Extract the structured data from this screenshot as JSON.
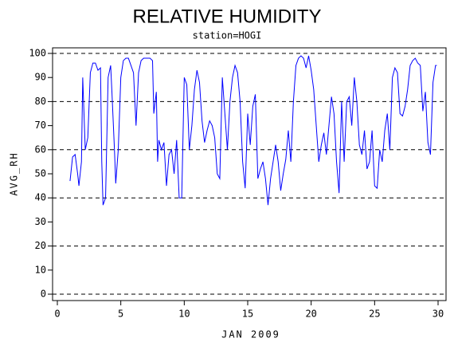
{
  "chart_data": {
    "type": "line",
    "title": "RELATIVE HUMIDITY",
    "subtitle": "station=HOGI",
    "y_label": "AVG_RH",
    "x_label": "JAN 2009",
    "xlim": [
      0,
      30
    ],
    "xticks": [
      0,
      5,
      10,
      15,
      20,
      25,
      30
    ],
    "ylim": [
      0,
      100
    ],
    "yticks": [
      0,
      10,
      20,
      30,
      40,
      50,
      60,
      70,
      80,
      90,
      100
    ],
    "grid_lines": [
      0,
      20,
      40,
      60,
      80,
      100
    ],
    "x": [
      1.0,
      1.2,
      1.4,
      1.6,
      1.7,
      1.9,
      2.0,
      2.2,
      2.4,
      2.6,
      2.8,
      3.0,
      3.2,
      3.4,
      3.5,
      3.6,
      3.8,
      4.0,
      4.2,
      4.3,
      4.5,
      4.6,
      4.8,
      5.0,
      5.2,
      5.4,
      5.6,
      5.8,
      6.0,
      6.2,
      6.4,
      6.6,
      6.8,
      7.0,
      7.3,
      7.5,
      7.6,
      7.8,
      7.9,
      8.0,
      8.2,
      8.4,
      8.6,
      8.8,
      9.0,
      9.2,
      9.4,
      9.6,
      9.8,
      10.0,
      10.2,
      10.4,
      10.6,
      10.8,
      11.0,
      11.2,
      11.4,
      11.6,
      11.8,
      12.0,
      12.2,
      12.4,
      12.6,
      12.8,
      13.0,
      13.2,
      13.4,
      13.6,
      13.8,
      14.0,
      14.2,
      14.4,
      14.6,
      14.8,
      15.0,
      15.2,
      15.4,
      15.6,
      15.8,
      16.0,
      16.2,
      16.4,
      16.6,
      16.8,
      17.0,
      17.2,
      17.4,
      17.6,
      17.8,
      18.0,
      18.2,
      18.4,
      18.6,
      18.8,
      19.0,
      19.2,
      19.4,
      19.6,
      19.8,
      20.0,
      20.2,
      20.4,
      20.6,
      20.8,
      21.0,
      21.2,
      21.4,
      21.6,
      21.8,
      22.0,
      22.2,
      22.4,
      22.6,
      22.8,
      23.0,
      23.2,
      23.4,
      23.6,
      23.8,
      24.0,
      24.2,
      24.4,
      24.6,
      24.8,
      25.0,
      25.2,
      25.4,
      25.6,
      25.8,
      26.0,
      26.2,
      26.4,
      26.6,
      26.8,
      27.0,
      27.2,
      27.4,
      27.6,
      27.8,
      28.0,
      28.2,
      28.4,
      28.6,
      28.8,
      29.0,
      29.2,
      29.4,
      29.6,
      29.8,
      29.9
    ],
    "series": [
      {
        "name": "AVG_RH",
        "color": "#0000ff",
        "values": [
          47,
          57,
          58,
          50,
          45,
          55,
          90,
          60,
          65,
          92,
          96,
          96,
          93,
          94,
          55,
          37,
          40,
          90,
          95,
          84,
          60,
          46,
          60,
          90,
          97,
          98,
          98,
          95,
          92,
          70,
          92,
          97,
          98,
          98,
          98,
          97,
          75,
          84,
          55,
          64,
          60,
          63,
          45,
          58,
          60,
          50,
          64,
          40,
          40,
          90,
          87,
          60,
          70,
          85,
          93,
          88,
          72,
          63,
          68,
          72,
          70,
          65,
          50,
          48,
          90,
          75,
          60,
          80,
          90,
          95,
          92,
          80,
          55,
          44,
          75,
          62,
          78,
          83,
          48,
          52,
          55,
          48,
          37,
          48,
          55,
          62,
          55,
          43,
          50,
          56,
          68,
          55,
          80,
          95,
          98,
          99,
          98,
          94,
          99,
          93,
          85,
          70,
          55,
          62,
          67,
          58,
          70,
          82,
          75,
          55,
          42,
          80,
          55,
          80,
          82,
          70,
          90,
          80,
          62,
          58,
          68,
          52,
          55,
          68,
          45,
          44,
          60,
          55,
          68,
          75,
          60,
          90,
          94,
          92,
          75,
          74,
          78,
          85,
          95,
          97,
          98,
          96,
          95,
          76,
          84,
          63,
          58,
          88,
          95,
          95
        ]
      }
    ]
  }
}
